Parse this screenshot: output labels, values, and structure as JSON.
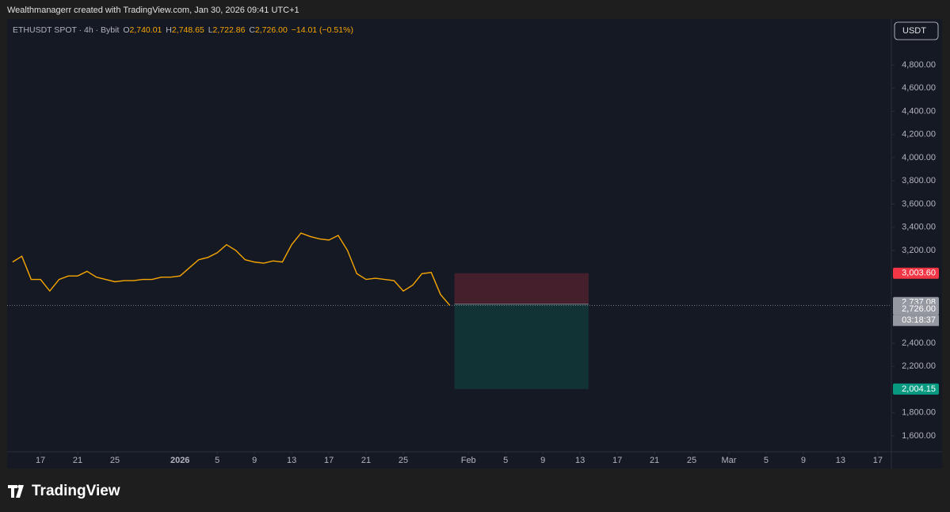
{
  "header": {
    "text": "Wealthmanagerr created with TradingView.com, Jan 30, 2026 09:41 UTC+1"
  },
  "footer": {
    "brand": "TradingView"
  },
  "chart_data": {
    "type": "line",
    "legend": {
      "symbol": "ETHUSDT SPOT · 4h · Bybit",
      "open_label": "O",
      "open": "2,740.01",
      "high_label": "H",
      "high": "2,748.65",
      "low_label": "L",
      "low": "2,722.86",
      "close_label": "C",
      "close": "2,726.00",
      "change": "−14.01 (−0.51%)"
    },
    "currency": "USDT",
    "x": [
      "2025-12-14",
      "2025-12-15",
      "2025-12-16",
      "2025-12-17",
      "2025-12-18",
      "2025-12-19",
      "2025-12-20",
      "2025-12-21",
      "2025-12-22",
      "2025-12-23",
      "2025-12-24",
      "2025-12-25",
      "2025-12-26",
      "2025-12-27",
      "2025-12-28",
      "2025-12-29",
      "2025-12-30",
      "2025-12-31",
      "2026-01-01",
      "2026-01-02",
      "2026-01-03",
      "2026-01-04",
      "2026-01-05",
      "2026-01-06",
      "2026-01-07",
      "2026-01-08",
      "2026-01-09",
      "2026-01-10",
      "2026-01-11",
      "2026-01-12",
      "2026-01-13",
      "2026-01-14",
      "2026-01-15",
      "2026-01-16",
      "2026-01-17",
      "2026-01-18",
      "2026-01-19",
      "2026-01-20",
      "2026-01-21",
      "2026-01-22",
      "2026-01-23",
      "2026-01-24",
      "2026-01-25",
      "2026-01-26",
      "2026-01-27",
      "2026-01-28",
      "2026-01-29",
      "2026-01-30"
    ],
    "series": [
      {
        "name": "ETHUSDT",
        "color": "#f7a600",
        "values": [
          3100,
          3150,
          2950,
          2950,
          2850,
          2950,
          2980,
          2980,
          3020,
          2970,
          2950,
          2930,
          2940,
          2940,
          2950,
          2950,
          2970,
          2970,
          2980,
          3050,
          3120,
          3140,
          3180,
          3250,
          3200,
          3120,
          3100,
          3090,
          3110,
          3100,
          3250,
          3350,
          3320,
          3300,
          3290,
          3330,
          3200,
          3000,
          2950,
          2960,
          2950,
          2940,
          2850,
          2900,
          3000,
          3010,
          2820,
          2726
        ]
      }
    ],
    "xlim": [
      "2025-12-13T10:00:00Z",
      "2026-03-18T11:00:00Z"
    ],
    "xticks": [
      {
        "value": "2025-12-17",
        "label": "17"
      },
      {
        "value": "2025-12-21",
        "label": "21"
      },
      {
        "value": "2025-12-25",
        "label": "25"
      },
      {
        "value": "2026-01-01",
        "label": "2026"
      },
      {
        "value": "2026-01-05",
        "label": "5"
      },
      {
        "value": "2026-01-09",
        "label": "9"
      },
      {
        "value": "2026-01-13",
        "label": "13"
      },
      {
        "value": "2026-01-17",
        "label": "17"
      },
      {
        "value": "2026-01-21",
        "label": "21"
      },
      {
        "value": "2026-01-25",
        "label": "25"
      },
      {
        "value": "2026-02-01",
        "label": "Feb"
      },
      {
        "value": "2026-02-05",
        "label": "5"
      },
      {
        "value": "2026-02-09",
        "label": "9"
      },
      {
        "value": "2026-02-13",
        "label": "13"
      },
      {
        "value": "2026-02-17",
        "label": "17"
      },
      {
        "value": "2026-02-21",
        "label": "21"
      },
      {
        "value": "2026-02-25",
        "label": "25"
      },
      {
        "value": "2026-03-01",
        "label": "Mar"
      },
      {
        "value": "2026-03-05",
        "label": "5"
      },
      {
        "value": "2026-03-09",
        "label": "9"
      },
      {
        "value": "2026-03-13",
        "label": "13"
      },
      {
        "value": "2026-03-17",
        "label": "17"
      }
    ],
    "ylim": [
      1463,
      5197
    ],
    "yticks": [
      {
        "value": 1600,
        "label": "1,600.00"
      },
      {
        "value": 1800,
        "label": "1,800.00"
      },
      {
        "value": 2200,
        "label": "2,200.00"
      },
      {
        "value": 2400,
        "label": "2,400.00"
      },
      {
        "value": 3200,
        "label": "3,200.00"
      },
      {
        "value": 3400,
        "label": "3,400.00"
      },
      {
        "value": 3600,
        "label": "3,600.00"
      },
      {
        "value": 3800,
        "label": "3,800.00"
      },
      {
        "value": 4000,
        "label": "4,000.00"
      },
      {
        "value": 4200,
        "label": "4,200.00"
      },
      {
        "value": 4400,
        "label": "4,400.00"
      },
      {
        "value": 4600,
        "label": "4,600.00"
      },
      {
        "value": 4800,
        "label": "4,800.00"
      }
    ],
    "position": {
      "start": "2026-01-30T12:00:00Z",
      "end": "2026-02-13T22:00:00Z",
      "stop": {
        "value": 3003.6,
        "label": "3,003.60",
        "color": "#f23645"
      },
      "entry": {
        "value": 2737.08,
        "label": "2,737.08",
        "color": "#9598a1"
      },
      "target": {
        "value": 2004.15,
        "label": "2,004.15",
        "color": "#089981"
      }
    },
    "last_price": {
      "value": 2726.0,
      "label": "2,726.00",
      "countdown": "03:18:37",
      "color": "#9598a1"
    }
  }
}
